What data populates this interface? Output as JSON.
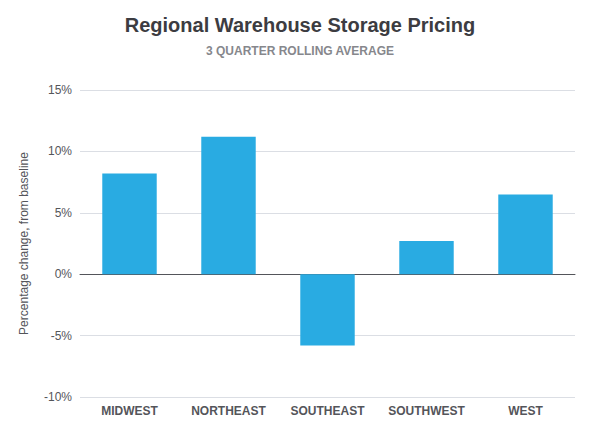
{
  "chart_data": {
    "type": "bar",
    "title": "Regional Warehouse Storage Pricing",
    "subtitle": "3 QUARTER ROLLING AVERAGE",
    "ylabel": "Percentage change, from baseline",
    "categories": [
      "MIDWEST",
      "NORTHEAST",
      "SOUTHEAST",
      "SOUTHWEST",
      "WEST"
    ],
    "values": [
      8.2,
      11.2,
      -5.8,
      2.7,
      6.5
    ],
    "color": "#29abe2",
    "ylim": [
      -10,
      15
    ],
    "yticks": [
      {
        "value": -10,
        "label": "-10%"
      },
      {
        "value": -5,
        "label": "-5%"
      },
      {
        "value": 0,
        "label": "0%"
      },
      {
        "value": 5,
        "label": "5%"
      },
      {
        "value": 10,
        "label": "10%"
      },
      {
        "value": 15,
        "label": "15%"
      }
    ],
    "grid": true
  }
}
